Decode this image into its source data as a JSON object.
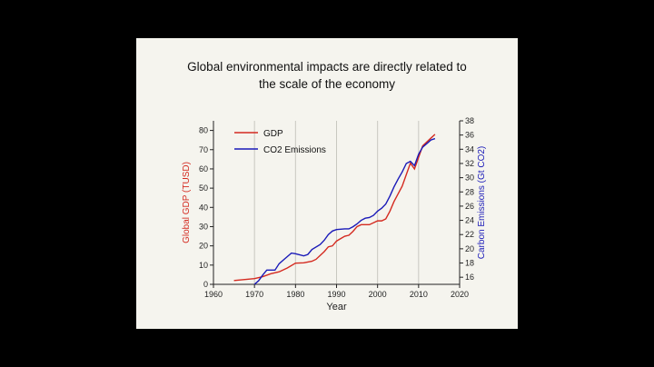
{
  "slide": {
    "title_line1": "Global environmental impacts are directly related to",
    "title_line2": "the scale of the economy"
  },
  "chart_data": {
    "type": "line",
    "title": "",
    "xlabel": "Year",
    "ylabel_left": "Global GDP (TUSD)",
    "ylabel_right": "Carbon Emissions (Gt CO2)",
    "xlim": [
      1960,
      2020
    ],
    "ylim_left": [
      0,
      85
    ],
    "ylim_right": [
      15,
      38
    ],
    "x_ticks": [
      1960,
      1970,
      1980,
      1990,
      2000,
      2010,
      2020
    ],
    "y_ticks_left": [
      0,
      10,
      20,
      30,
      40,
      50,
      60,
      70,
      80
    ],
    "y_ticks_right": [
      16,
      18,
      20,
      22,
      24,
      26,
      28,
      30,
      32,
      34,
      36,
      38
    ],
    "grid": "vertical at decades",
    "legend_position": "top-left",
    "series": [
      {
        "name": "GDP",
        "axis": "left",
        "color": "#d42a20",
        "x": [
          1965,
          1970,
          1972,
          1974,
          1976,
          1978,
          1980,
          1982,
          1984,
          1985,
          1987,
          1988,
          1989,
          1990,
          1992,
          1993,
          1994,
          1995,
          1996,
          1998,
          2000,
          2001,
          2002,
          2003,
          2004,
          2005,
          2006,
          2007,
          2008,
          2009,
          2010,
          2011,
          2012,
          2013,
          2014
        ],
        "y": [
          2,
          3,
          4,
          5.5,
          6.5,
          8.5,
          11,
          11.2,
          12,
          13,
          17,
          19.5,
          20,
          22.5,
          25,
          25.5,
          27.5,
          30,
          31,
          31,
          33,
          33,
          34,
          38,
          43,
          47,
          51,
          57,
          63,
          60,
          66,
          72,
          74,
          76,
          78
        ]
      },
      {
        "name": "CO2 Emissions",
        "axis": "right",
        "color": "#1a1ab8",
        "x": [
          1970,
          1971,
          1972,
          1973,
          1975,
          1976,
          1977,
          1978,
          1979,
          1980,
          1982,
          1983,
          1984,
          1986,
          1987,
          1988,
          1989,
          1990,
          1992,
          1993,
          1994,
          1995,
          1996,
          1997,
          1998,
          1999,
          2000,
          2001,
          2002,
          2003,
          2004,
          2005,
          2006,
          2007,
          2008,
          2009,
          2010,
          2011,
          2012,
          2013,
          2014
        ],
        "y": [
          15,
          15.5,
          16.3,
          17,
          17,
          17.9,
          18.4,
          18.9,
          19.4,
          19.3,
          19,
          19.2,
          19.9,
          20.6,
          21.2,
          22,
          22.5,
          22.7,
          22.8,
          22.8,
          23.1,
          23.5,
          24,
          24.3,
          24.4,
          24.7,
          25.3,
          25.7,
          26.3,
          27.4,
          28.7,
          29.8,
          30.8,
          32,
          32.3,
          31.7,
          33.3,
          34.3,
          34.8,
          35.3,
          35.5
        ]
      }
    ]
  }
}
